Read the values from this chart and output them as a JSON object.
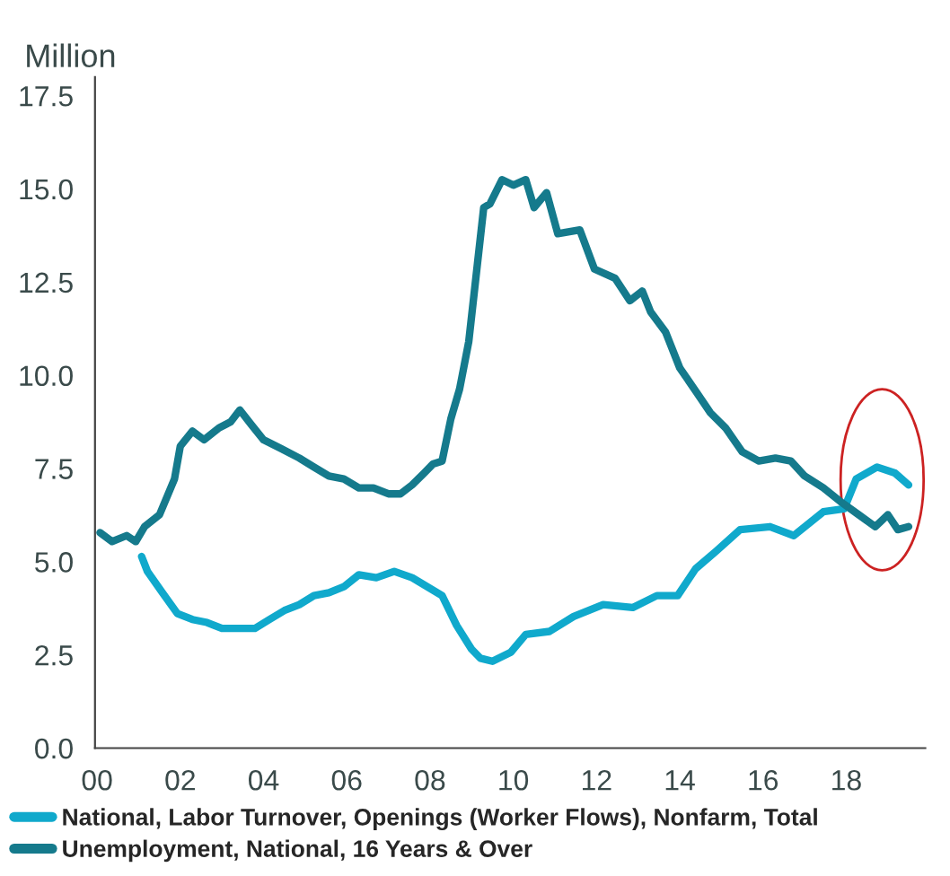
{
  "chart_data": {
    "type": "line",
    "ylabel": "Million",
    "xlim": [
      -0.05,
      19.9
    ],
    "ylim": [
      0,
      18
    ],
    "xticks": [
      {
        "value": 0,
        "label": "00"
      },
      {
        "value": 2,
        "label": "02"
      },
      {
        "value": 4,
        "label": "04"
      },
      {
        "value": 6,
        "label": "06"
      },
      {
        "value": 8,
        "label": "08"
      },
      {
        "value": 10,
        "label": "10"
      },
      {
        "value": 12,
        "label": "12"
      },
      {
        "value": 14,
        "label": "14"
      },
      {
        "value": 16,
        "label": "16"
      },
      {
        "value": 18,
        "label": "18"
      }
    ],
    "yticks": [
      {
        "value": 0,
        "label": "0.0"
      },
      2.5,
      {
        "value": 5,
        "label": "5.0"
      },
      7.5,
      {
        "value": 10,
        "label": "10.0"
      },
      12.5,
      {
        "value": 15,
        "label": "15.0"
      },
      17.5
    ],
    "grid": false,
    "legend": "bottom",
    "marker": "none",
    "line_style": "solid",
    "series": [
      {
        "name": "National, Labor Turnover, Openings (Worker Flows), Nonfarm, Total",
        "color": "#10a9cc",
        "x": [
          1.07,
          1.21,
          1.57,
          1.93,
          2.29,
          2.64,
          3.0,
          3.43,
          3.79,
          4.14,
          4.5,
          4.86,
          5.21,
          5.57,
          5.93,
          6.29,
          6.71,
          7.14,
          7.57,
          7.93,
          8.29,
          8.64,
          9.0,
          9.21,
          9.5,
          9.94,
          10.3,
          10.87,
          11.45,
          12.16,
          12.87,
          13.45,
          13.95,
          14.38,
          14.88,
          15.45,
          16.17,
          16.74,
          17.45,
          17.95,
          18.24,
          18.74,
          19.17,
          19.5
        ],
        "values": [
          5.14,
          4.74,
          4.17,
          3.61,
          3.45,
          3.37,
          3.21,
          3.21,
          3.21,
          3.45,
          3.69,
          3.85,
          4.09,
          4.17,
          4.33,
          4.65,
          4.57,
          4.74,
          4.57,
          4.33,
          4.09,
          3.29,
          2.65,
          2.41,
          2.33,
          2.57,
          3.05,
          3.13,
          3.53,
          3.85,
          3.77,
          4.09,
          4.09,
          4.81,
          5.29,
          5.86,
          5.94,
          5.7,
          6.34,
          6.42,
          7.22,
          7.54,
          7.38,
          7.06
        ]
      },
      {
        "name": "Unemployment, National, 16 Years & Over",
        "color": "#157a8c",
        "x": [
          0.07,
          0.36,
          0.71,
          0.93,
          1.14,
          1.5,
          1.86,
          2.0,
          2.29,
          2.57,
          2.93,
          3.21,
          3.43,
          3.71,
          4.0,
          4.43,
          4.86,
          5.21,
          5.57,
          5.93,
          6.29,
          6.64,
          7.0,
          7.29,
          7.57,
          7.86,
          8.07,
          8.29,
          8.5,
          8.71,
          8.93,
          9.14,
          9.29,
          9.44,
          9.73,
          10.0,
          10.3,
          10.5,
          10.8,
          11.07,
          11.6,
          11.95,
          12.45,
          12.8,
          13.1,
          13.3,
          13.66,
          14.0,
          14.4,
          14.74,
          15.1,
          15.5,
          15.9,
          16.3,
          16.67,
          17.0,
          17.45,
          17.9,
          18.3,
          18.7,
          19.0,
          19.24,
          19.5
        ],
        "values": [
          5.78,
          5.54,
          5.7,
          5.54,
          5.94,
          6.26,
          7.22,
          8.1,
          8.5,
          8.27,
          8.59,
          8.75,
          9.07,
          8.67,
          8.27,
          8.03,
          7.78,
          7.54,
          7.3,
          7.22,
          6.98,
          6.98,
          6.82,
          6.82,
          7.06,
          7.38,
          7.62,
          7.7,
          8.83,
          9.63,
          10.9,
          13.0,
          14.5,
          14.6,
          15.25,
          15.1,
          15.25,
          14.5,
          14.9,
          13.8,
          13.9,
          12.85,
          12.6,
          12.0,
          12.26,
          11.7,
          11.16,
          10.2,
          9.55,
          8.99,
          8.59,
          7.95,
          7.7,
          7.78,
          7.7,
          7.3,
          6.98,
          6.58,
          6.26,
          5.94,
          6.26,
          5.86,
          5.94
        ]
      }
    ]
  }
}
